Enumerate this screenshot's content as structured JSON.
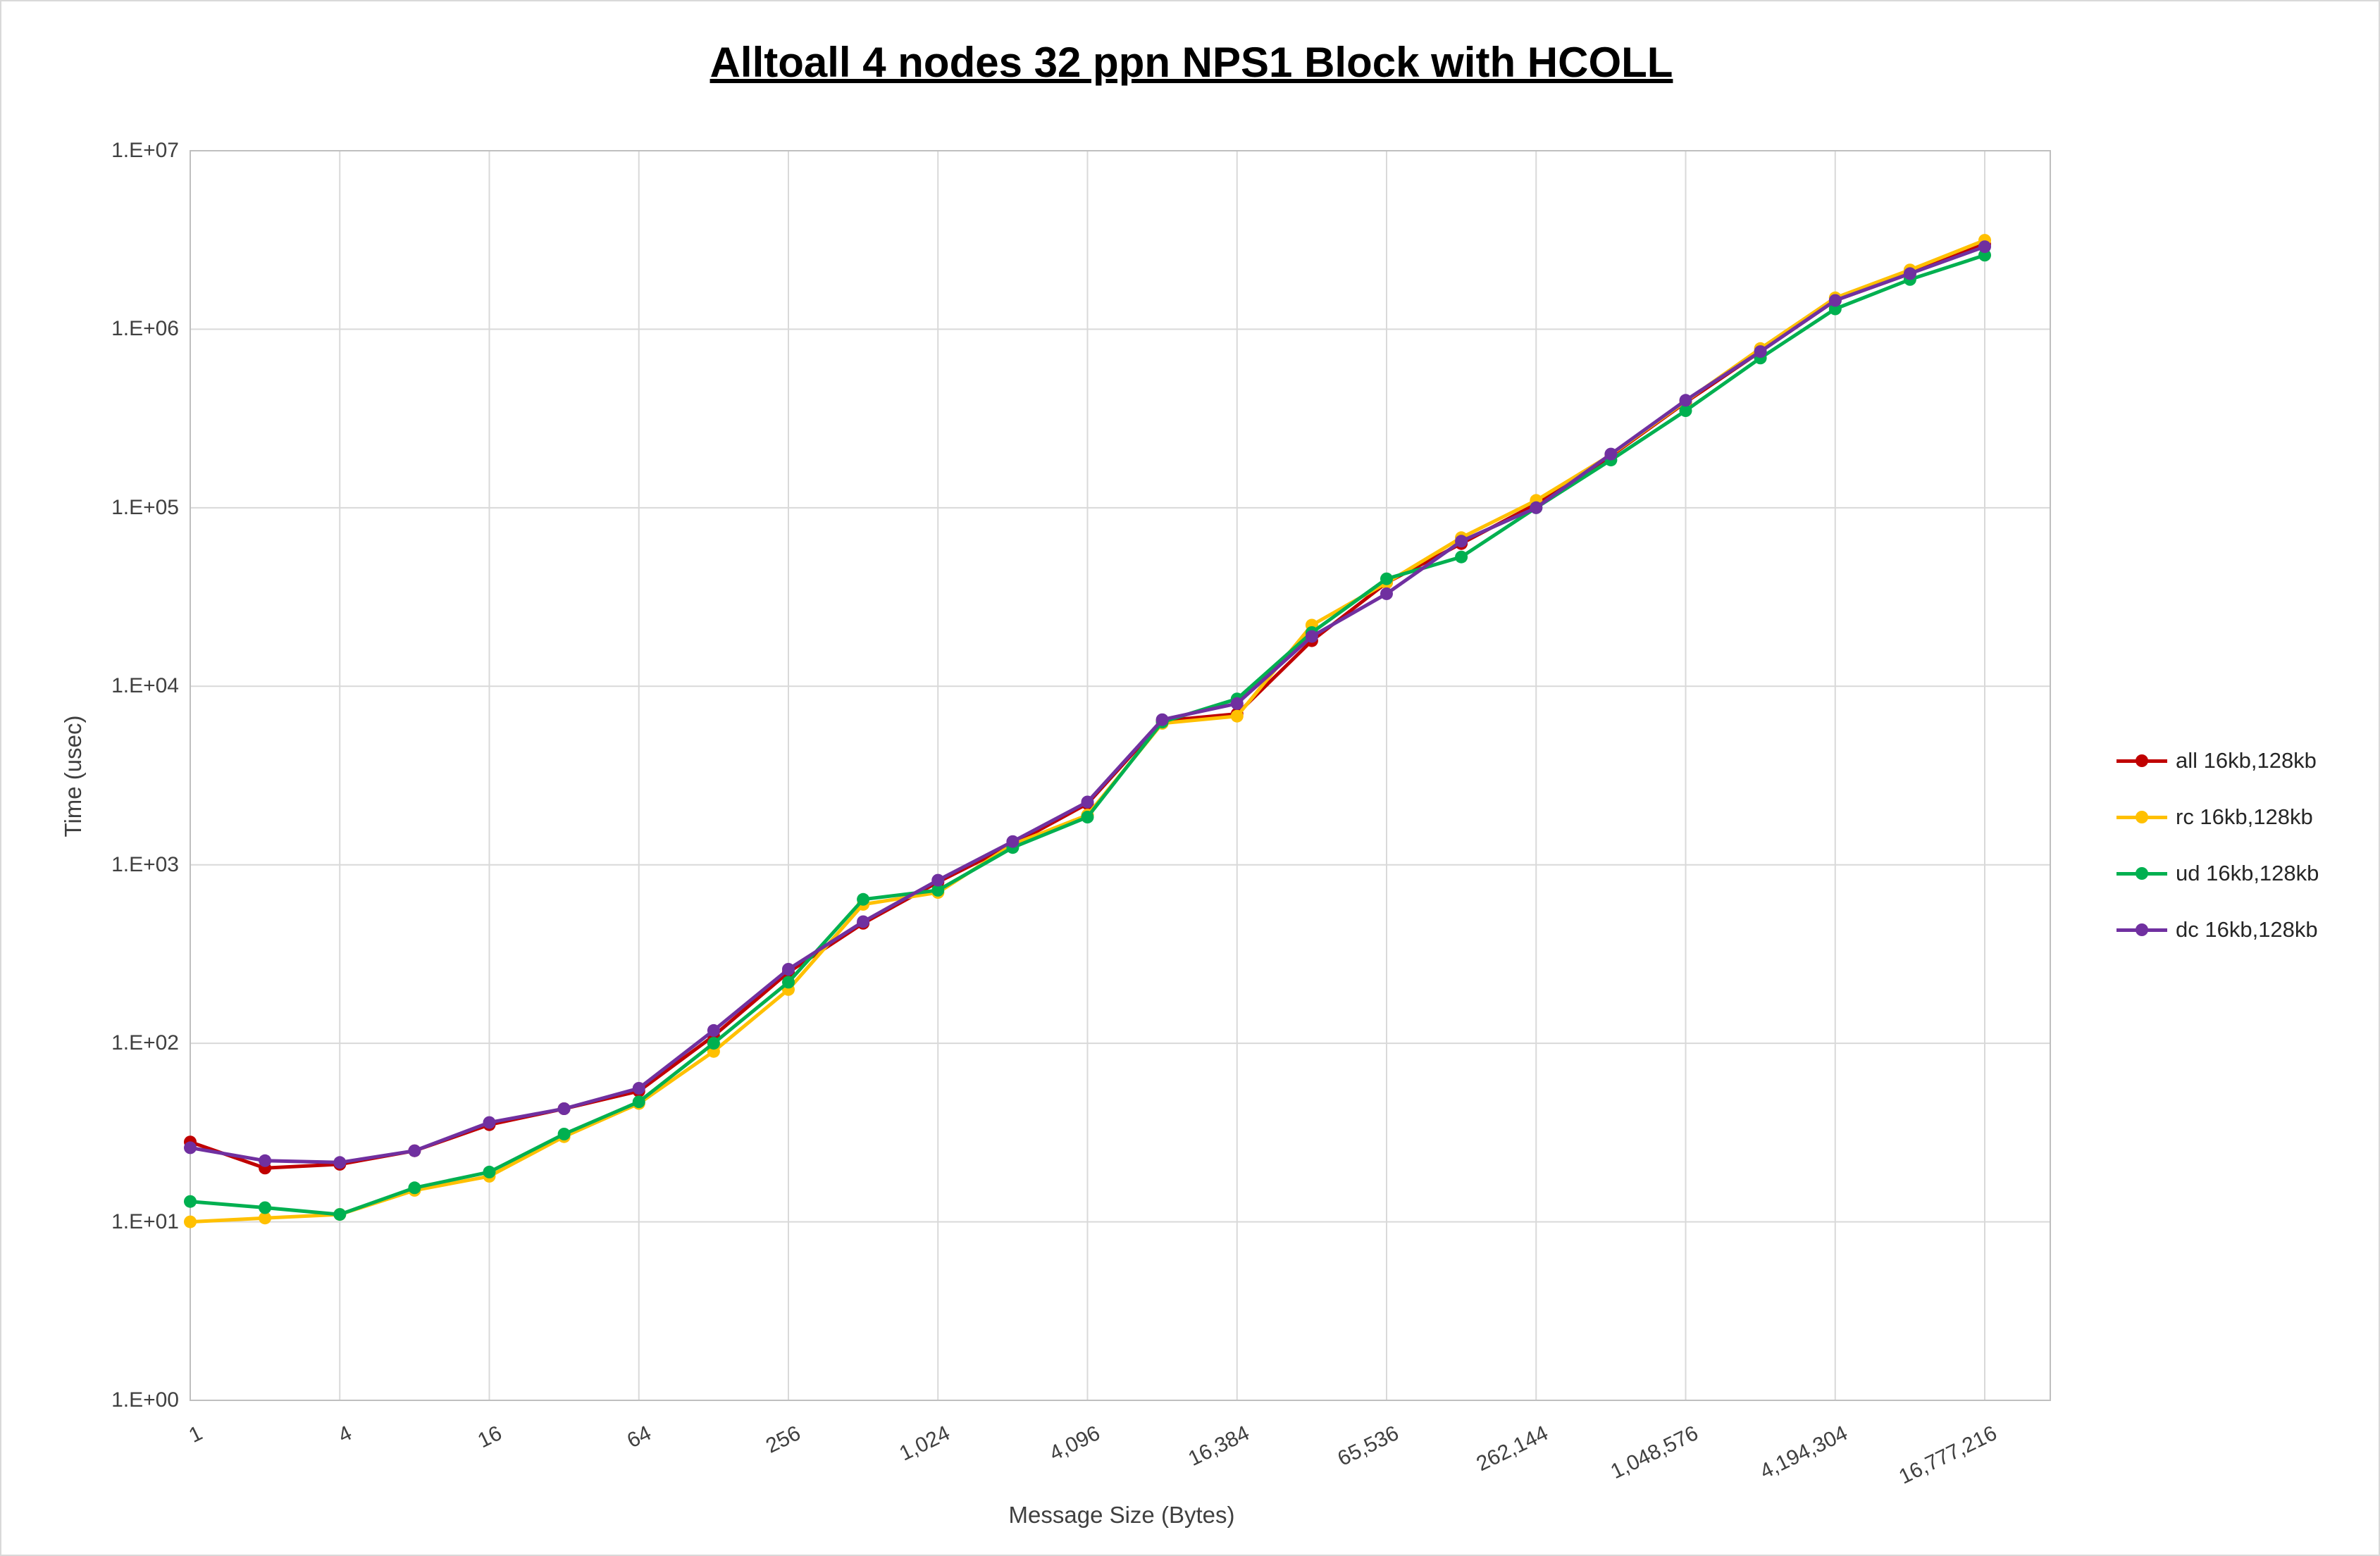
{
  "title": "Alltoall 4 nodes 32 ppn NPS1 Block with HCOLL",
  "chart_data": {
    "type": "line",
    "title": "Alltoall 4 nodes 32 ppn NPS1 Block with HCOLL",
    "xlabel": "Message Size (Bytes)",
    "ylabel": "Time (usec)",
    "x_scale": "log2",
    "y_scale": "log10",
    "ylim": [
      1,
      10000000
    ],
    "grid": true,
    "legend_position": "right",
    "x": [
      1,
      2,
      4,
      8,
      16,
      32,
      64,
      128,
      256,
      512,
      1024,
      2048,
      4096,
      8192,
      16384,
      32768,
      65536,
      131072,
      262144,
      524288,
      1048576,
      2097152,
      4194304,
      8388608,
      16777216
    ],
    "x_tick_values": [
      1,
      4,
      16,
      64,
      256,
      1024,
      4096,
      16384,
      65536,
      262144,
      1048576,
      4194304,
      16777216
    ],
    "x_tick_labels": [
      "1",
      "4",
      "16",
      "64",
      "256",
      "1,024",
      "4,096",
      "16,384",
      "65,536",
      "262,144",
      "1,048,576",
      "4,194,304",
      "16,777,216"
    ],
    "y_tick_labels": [
      "1.E+00",
      "1.E+01",
      "1.E+02",
      "1.E+03",
      "1.E+04",
      "1.E+05",
      "1.E+06",
      "1.E+07"
    ],
    "series": [
      {
        "key": "all",
        "name": "all 16kb,128kb",
        "color": "#C00000",
        "values": [
          28,
          20,
          21,
          25,
          35,
          43,
          54,
          110,
          250,
          470,
          800,
          1300,
          2200,
          6400,
          7000,
          18000,
          38000,
          63000,
          105000,
          195000,
          390000,
          750000,
          1450000,
          2050000,
          3000000
        ]
      },
      {
        "key": "rc",
        "name": "rc 16kb,128kb",
        "color": "#FFC000",
        "values": [
          10,
          10.5,
          11,
          15,
          18,
          30,
          46,
          90,
          200,
          600,
          700,
          1300,
          1900,
          6200,
          6800,
          22000,
          38000,
          68000,
          110000,
          198000,
          395000,
          780000,
          1500000,
          2150000,
          3150000
        ]
      },
      {
        "key": "ud",
        "name": "ud 16kb,128kb",
        "color": "#00B050",
        "values": [
          13,
          12,
          11,
          15.5,
          19,
          31,
          47,
          100,
          220,
          640,
          720,
          1250,
          1850,
          6300,
          8500,
          20000,
          40000,
          53000,
          100000,
          185000,
          350000,
          690000,
          1300000,
          1900000,
          2600000
        ]
      },
      {
        "key": "dc",
        "name": "dc 16kb,128kb",
        "color": "#7030A0",
        "values": [
          26,
          22,
          21.5,
          25,
          36,
          43,
          56,
          118,
          260,
          480,
          820,
          1350,
          2250,
          6500,
          8000,
          19000,
          33000,
          65000,
          100000,
          200000,
          400000,
          750000,
          1450000,
          2050000,
          2900000
        ]
      }
    ]
  }
}
